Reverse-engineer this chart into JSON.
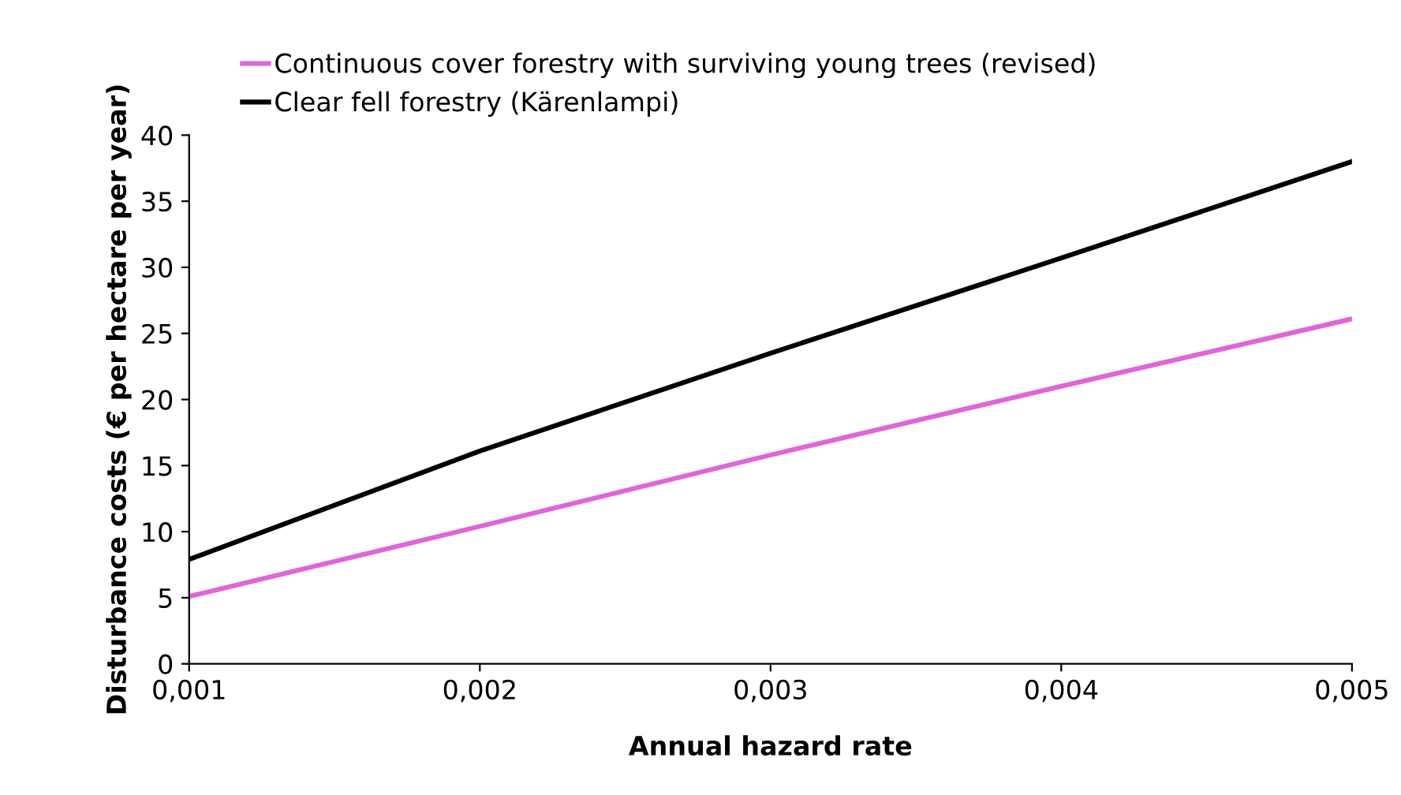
{
  "chart_data": {
    "type": "line",
    "xlabel": "Annual hazard rate",
    "ylabel": "Disturbance costs (€ per hectare per year)",
    "x": [
      0.001,
      0.002,
      0.003,
      0.004,
      0.005
    ],
    "series": [
      {
        "name": "Continuous cover forestry with surviving young trees (revised)",
        "color": "#e066d6",
        "values": [
          5.1,
          10.4,
          15.8,
          21.0,
          26.1
        ]
      },
      {
        "name": "Clear fell forestry (Kärenlampi)",
        "color": "#000000",
        "values": [
          7.9,
          16.1,
          23.5,
          30.7,
          38.0
        ]
      }
    ],
    "xlim": [
      0.001,
      0.005
    ],
    "ylim": [
      0,
      40
    ],
    "xticks": [
      {
        "value": 0.001,
        "label": "0,001"
      },
      {
        "value": 0.002,
        "label": "0,002"
      },
      {
        "value": 0.003,
        "label": "0,003"
      },
      {
        "value": 0.004,
        "label": "0,004"
      },
      {
        "value": 0.005,
        "label": "0,005"
      }
    ],
    "yticks": [
      0,
      5,
      10,
      15,
      20,
      25,
      30,
      35,
      40
    ],
    "grid": false,
    "legend": "top",
    "marker": "none",
    "line_style": "solid"
  }
}
